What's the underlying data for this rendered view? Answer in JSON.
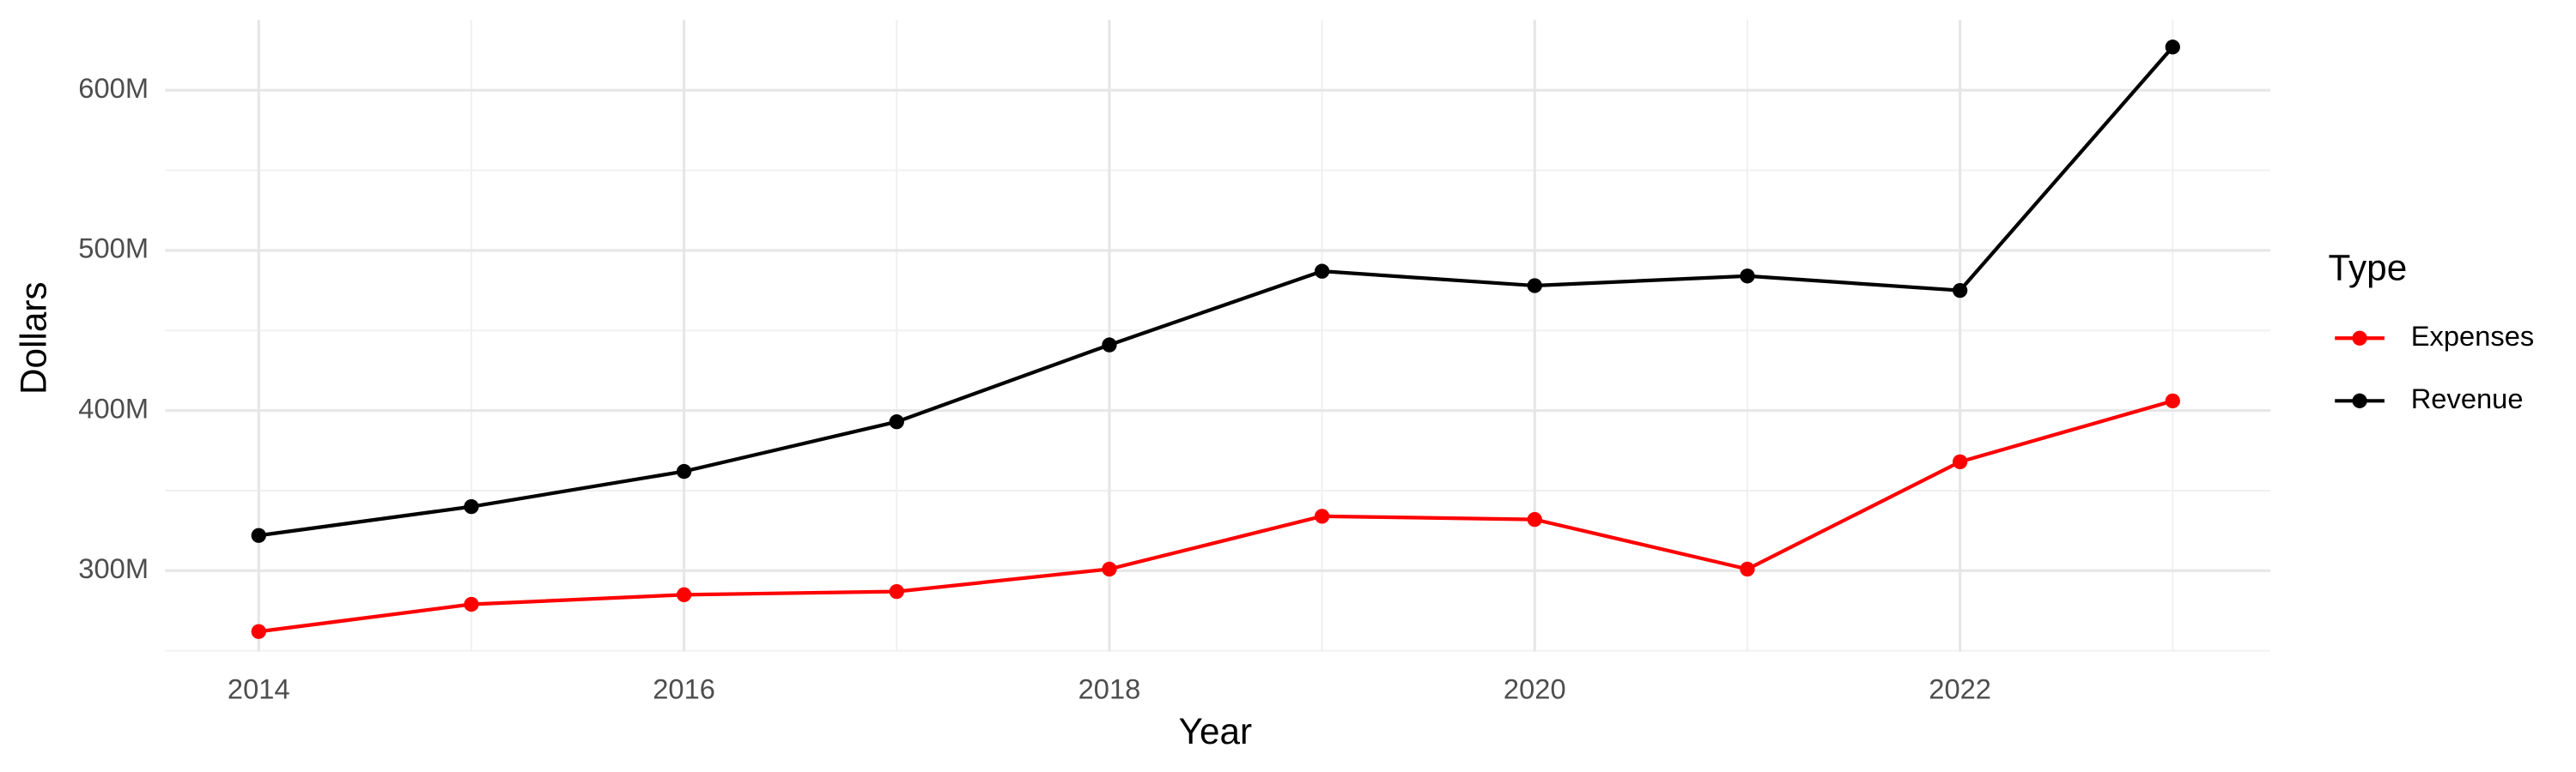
{
  "chart_data": {
    "type": "line",
    "x_label": "Year",
    "y_label": "Dollars",
    "x": [
      2014,
      2015,
      2016,
      2017,
      2018,
      2019,
      2020,
      2021,
      2022,
      2023
    ],
    "series": [
      {
        "name": "Expenses",
        "color": "#ff0000",
        "values": [
          262000000,
          279000000,
          285000000,
          287000000,
          301000000,
          334000000,
          332000000,
          301000000,
          368000000,
          406000000
        ]
      },
      {
        "name": "Revenue",
        "color": "#000000",
        "values": [
          322000000,
          340000000,
          362000000,
          393000000,
          441000000,
          487000000,
          478000000,
          484000000,
          475000000,
          627000000
        ]
      }
    ],
    "xlim": [
      2013.56,
      2023.46
    ],
    "xticks": [
      2014,
      2016,
      2018,
      2020,
      2022
    ],
    "ylim": [
      249500000,
      644000000
    ],
    "yticks": [
      {
        "value": 300000000,
        "label": "300M"
      },
      {
        "value": 400000000,
        "label": "400M"
      },
      {
        "value": 500000000,
        "label": "500M"
      },
      {
        "value": 600000000,
        "label": "600M"
      }
    ],
    "grid": true,
    "legend_title": "Type",
    "legend_position": "right"
  }
}
